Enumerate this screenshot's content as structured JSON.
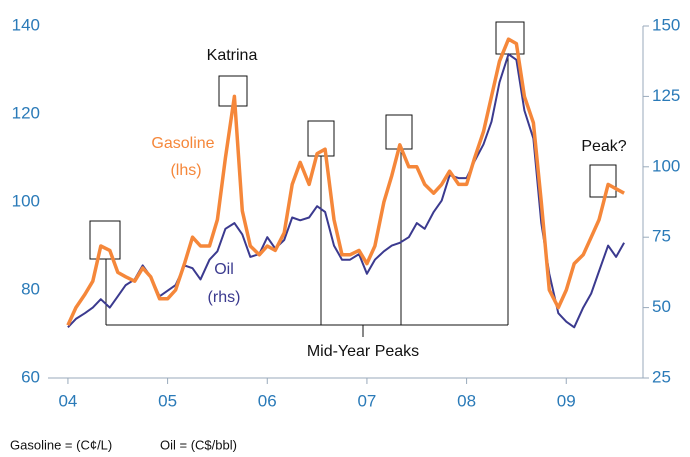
{
  "chart_data": {
    "type": "line",
    "x": [
      2004,
      2004.08,
      2004.17,
      2004.25,
      2004.33,
      2004.42,
      2004.5,
      2004.58,
      2004.67,
      2004.75,
      2004.83,
      2004.92,
      2005,
      2005.08,
      2005.17,
      2005.25,
      2005.33,
      2005.42,
      2005.5,
      2005.58,
      2005.67,
      2005.75,
      2005.83,
      2005.92,
      2006,
      2006.08,
      2006.17,
      2006.25,
      2006.33,
      2006.42,
      2006.5,
      2006.58,
      2006.67,
      2006.75,
      2006.83,
      2006.92,
      2007,
      2007.08,
      2007.17,
      2007.25,
      2007.33,
      2007.42,
      2007.5,
      2007.58,
      2007.67,
      2007.75,
      2007.83,
      2007.92,
      2008,
      2008.08,
      2008.17,
      2008.25,
      2008.33,
      2008.42,
      2008.5,
      2008.58,
      2008.67,
      2008.75,
      2008.83,
      2008.92,
      2009,
      2009.08,
      2009.17,
      2009.25,
      2009.33,
      2009.42,
      2009.5,
      2009.58
    ],
    "series": [
      {
        "name": "Gasoline",
        "color": "#f5873a",
        "values": [
          72,
          76,
          79,
          82,
          90,
          89,
          84,
          83,
          82,
          85,
          83,
          78,
          78,
          80,
          86,
          92,
          90,
          90,
          96,
          110,
          124,
          98,
          90,
          88,
          90,
          89,
          93,
          104,
          109,
          104,
          111,
          112,
          96,
          88,
          88,
          89,
          86,
          90,
          100,
          106,
          113,
          108,
          108,
          104,
          102,
          104,
          107,
          104,
          104,
          110,
          116,
          124,
          132,
          137,
          136,
          124,
          118,
          100,
          80,
          76,
          80,
          86,
          88,
          92,
          96,
          104,
          103,
          102
        ]
      },
      {
        "name": "Oil",
        "color": "#3b3a8f",
        "axis": "y2",
        "values": [
          43,
          46,
          48,
          50,
          53,
          50,
          54,
          58,
          60,
          65,
          61,
          54,
          56,
          58,
          65,
          64,
          60,
          67,
          70,
          78,
          80,
          76,
          68,
          69,
          75,
          71,
          74,
          82,
          81,
          82,
          86,
          84,
          72,
          67,
          67,
          69,
          62,
          67,
          70,
          72,
          73,
          75,
          80,
          78,
          84,
          88,
          97,
          96,
          96,
          102,
          108,
          116,
          130,
          140,
          138,
          120,
          110,
          80,
          62,
          48,
          45,
          43,
          50,
          55,
          63,
          72,
          68,
          73
        ]
      }
    ],
    "xlim": [
      2003.8,
      2009.77
    ],
    "xticks": [
      {
        "value": 2004,
        "label": "04"
      },
      {
        "value": 2005,
        "label": "05"
      },
      {
        "value": 2006,
        "label": "06"
      },
      {
        "value": 2007,
        "label": "07"
      },
      {
        "value": 2008,
        "label": "08"
      },
      {
        "value": 2009,
        "label": "09"
      }
    ],
    "ylim": [
      60,
      140
    ],
    "yticks": [
      60,
      80,
      100,
      120,
      140
    ],
    "y2lim": [
      25,
      150
    ],
    "y2ticks": [
      25,
      50,
      75,
      100,
      125,
      150
    ],
    "annotations": [
      "Katrina",
      "Gasoline",
      "(lhs)",
      "Oil",
      "(rhs)",
      "Mid-Year Peaks",
      "Peak?"
    ],
    "footnotes": [
      "Gasoline = (C¢/L)",
      "Oil = (C$/bbl)"
    ]
  }
}
